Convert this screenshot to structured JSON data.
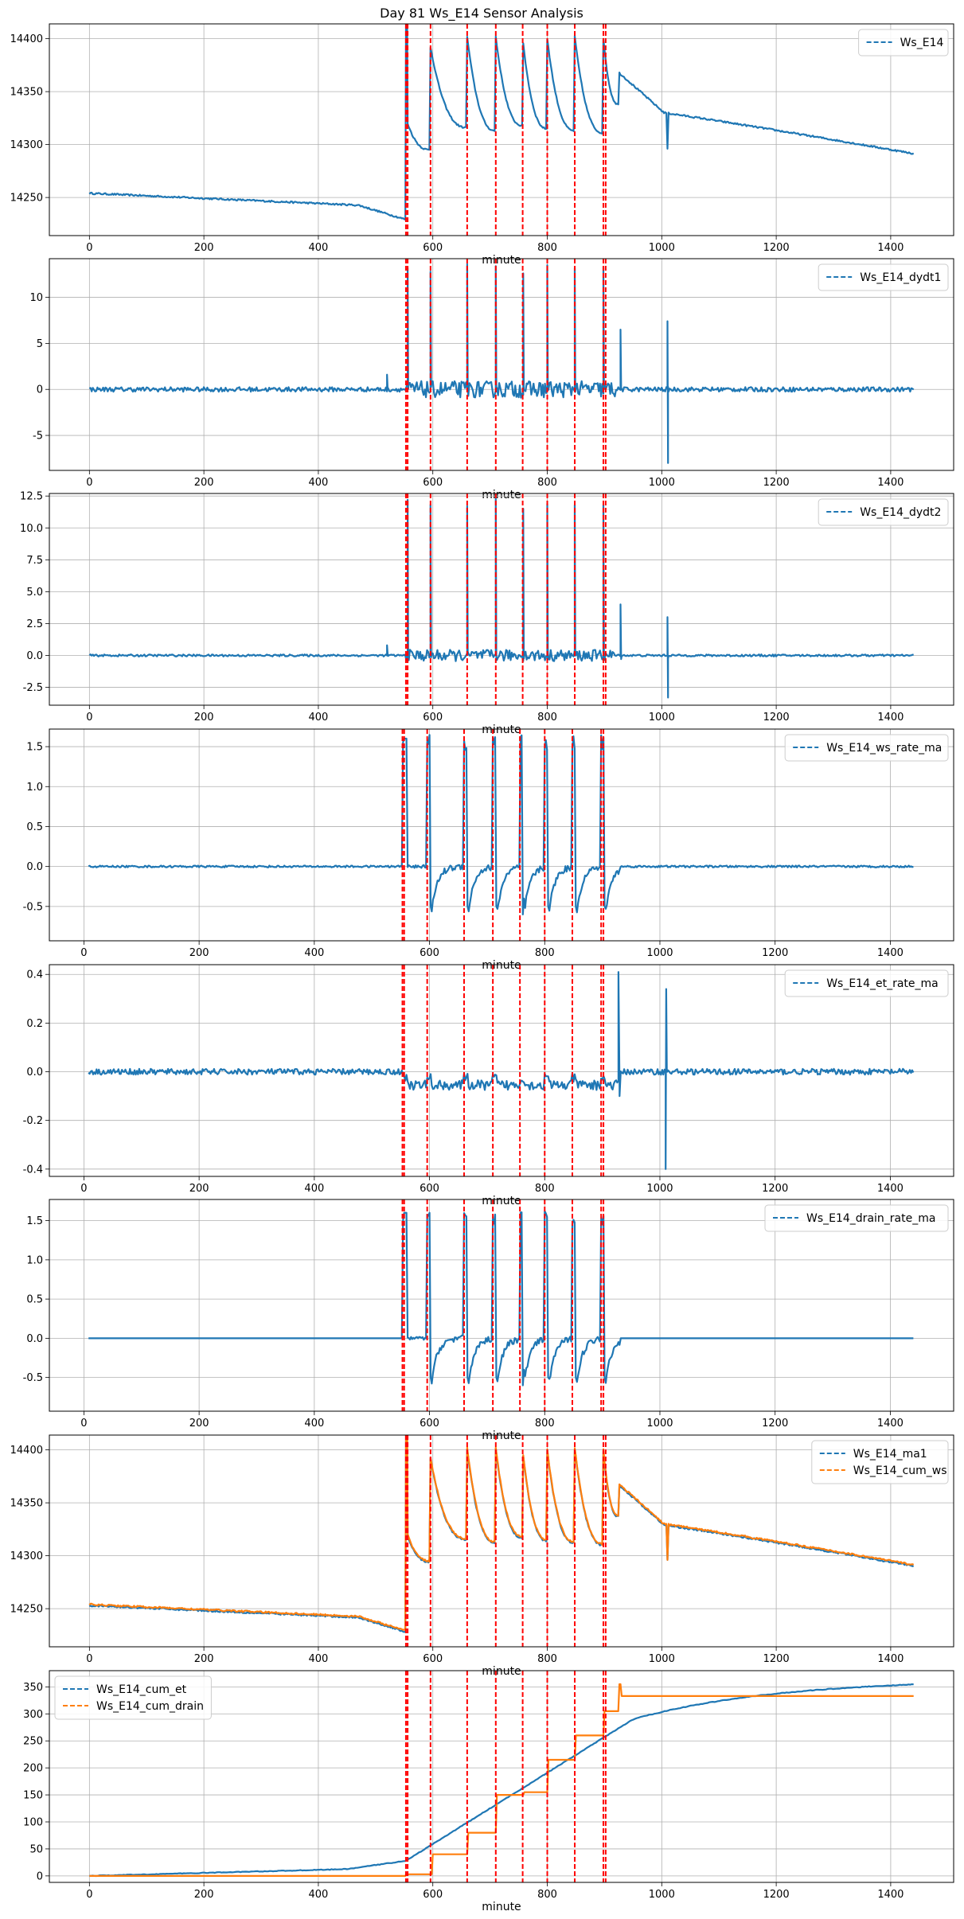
{
  "title": "Day 81 Ws_E14 Sensor Analysis",
  "event_line_color": "#ff0000",
  "event_minutes": [
    553,
    556,
    596,
    660,
    710,
    757,
    800,
    848,
    898,
    902
  ],
  "colors": {
    "blue": "#1f77b4",
    "orange": "#ff7f0e",
    "grid": "#b0b0b0"
  },
  "chart_data": [
    {
      "type": "line",
      "xlabel": "minute",
      "xlim": [
        -70,
        1510
      ],
      "ylim": [
        14214,
        14414
      ],
      "xticks": [
        0,
        200,
        400,
        600,
        800,
        1000,
        1200,
        1400
      ],
      "yticks": [
        14250,
        14300,
        14350,
        14400
      ],
      "legend": "top-right",
      "series": [
        {
          "name": "Ws_E14",
          "color": "#1f77b4",
          "style": "dashed",
          "kind": "ws"
        }
      ]
    },
    {
      "type": "line",
      "xlabel": "minute",
      "xlim": [
        -70,
        1510
      ],
      "ylim": [
        -8.8,
        14.2
      ],
      "xticks": [
        0,
        200,
        400,
        600,
        800,
        1000,
        1200,
        1400
      ],
      "yticks": [
        -5,
        0,
        5,
        10
      ],
      "legend": "top-right",
      "series": [
        {
          "name": "Ws_E14_dydt1",
          "color": "#1f77b4",
          "style": "dashed",
          "kind": "d1"
        }
      ]
    },
    {
      "type": "line",
      "xlabel": "minute",
      "xlim": [
        -70,
        1510
      ],
      "ylim": [
        -3.9,
        12.7
      ],
      "xticks": [
        0,
        200,
        400,
        600,
        800,
        1000,
        1200,
        1400
      ],
      "yticks": [
        -2.5,
        0.0,
        2.5,
        5.0,
        7.5,
        10.0,
        12.5
      ],
      "ytick_decimals": 1,
      "legend": "top-right",
      "series": [
        {
          "name": "Ws_E14_dydt2",
          "color": "#1f77b4",
          "style": "dashed",
          "kind": "d2"
        }
      ]
    },
    {
      "type": "line",
      "xlabel": "minute",
      "xlim": [
        -60,
        1510
      ],
      "ylim": [
        -0.93,
        1.72
      ],
      "xticks": [
        0,
        200,
        400,
        600,
        800,
        1000,
        1200,
        1400
      ],
      "yticks": [
        -0.5,
        0.0,
        0.5,
        1.0,
        1.5
      ],
      "ytick_decimals": 1,
      "legend": "top-right",
      "series": [
        {
          "name": "Ws_E14_ws_rate_ma",
          "color": "#1f77b4",
          "style": "dashed",
          "kind": "wsrate"
        }
      ]
    },
    {
      "type": "line",
      "xlabel": "minute",
      "xlim": [
        -60,
        1510
      ],
      "ylim": [
        -0.43,
        0.44
      ],
      "xticks": [
        0,
        200,
        400,
        600,
        800,
        1000,
        1200,
        1400
      ],
      "yticks": [
        -0.4,
        -0.2,
        0.0,
        0.2,
        0.4
      ],
      "ytick_decimals": 1,
      "legend": "top-right",
      "series": [
        {
          "name": "Ws_E14_et_rate_ma",
          "color": "#1f77b4",
          "style": "dashed",
          "kind": "etrate"
        }
      ]
    },
    {
      "type": "line",
      "xlabel": "minute",
      "xlim": [
        -60,
        1510
      ],
      "ylim": [
        -0.93,
        1.77
      ],
      "xticks": [
        0,
        200,
        400,
        600,
        800,
        1000,
        1200,
        1400
      ],
      "yticks": [
        -0.5,
        0.0,
        0.5,
        1.0,
        1.5
      ],
      "ytick_decimals": 1,
      "legend": "top-right",
      "series": [
        {
          "name": "Ws_E14_drain_rate_ma",
          "color": "#1f77b4",
          "style": "dashed",
          "kind": "drainrate"
        }
      ]
    },
    {
      "type": "line",
      "xlabel": "minute",
      "xlim": [
        -70,
        1510
      ],
      "ylim": [
        14214,
        14414
      ],
      "xticks": [
        0,
        200,
        400,
        600,
        800,
        1000,
        1200,
        1400
      ],
      "yticks": [
        14250,
        14300,
        14350,
        14400
      ],
      "legend": "top-right",
      "series": [
        {
          "name": "Ws_E14_ma1",
          "color": "#1f77b4",
          "style": "dashed",
          "kind": "ma1"
        },
        {
          "name": "Ws_E14_cum_ws",
          "color": "#ff7f0e",
          "style": "dashed",
          "kind": "cumws"
        }
      ]
    },
    {
      "type": "line",
      "xlabel": "minute",
      "xlim": [
        -70,
        1510
      ],
      "ylim": [
        -12,
        380
      ],
      "xticks": [
        0,
        200,
        400,
        600,
        800,
        1000,
        1200,
        1400
      ],
      "yticks": [
        0,
        50,
        100,
        150,
        200,
        250,
        300,
        350
      ],
      "legend": "top-left",
      "series": [
        {
          "name": "Ws_E14_cum_et",
          "color": "#1f77b4",
          "style": "dashed",
          "kind": "cumet"
        },
        {
          "name": "Ws_E14_cum_drain",
          "color": "#ff7f0e",
          "style": "dashed",
          "kind": "cumdrain"
        }
      ]
    }
  ]
}
